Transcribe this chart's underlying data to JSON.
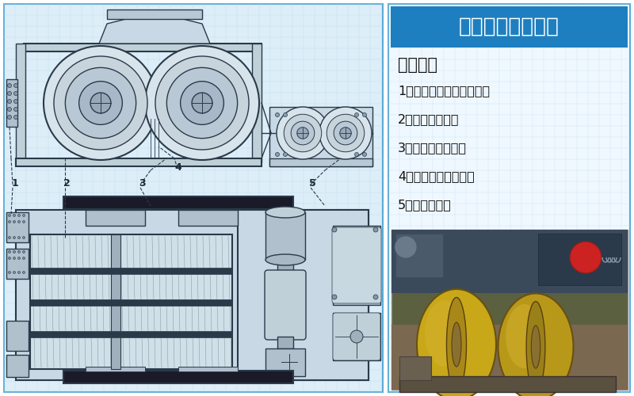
{
  "title": "皮带对辊机结构图",
  "title_bg": "#1e7fc0",
  "title_color": "#ffffff",
  "section_header": "主要部件",
  "parts": [
    "1．调节螺栓（调节弹簧）",
    "2．弹簧（压力）",
    "3．辊皮（易损件）",
    "4．刮板（处理湿料）",
    "5．电机减速机"
  ],
  "bg_color": "#ffffff",
  "left_bg": "#e8f4fb",
  "right_bg": "#f0f8ff",
  "grid_color": "#b8d8f0",
  "border_color": "#5aaad5",
  "lc": "#2a3a4a",
  "watermark_color": "#c0d4e0",
  "label_color": "#1a2a3a"
}
